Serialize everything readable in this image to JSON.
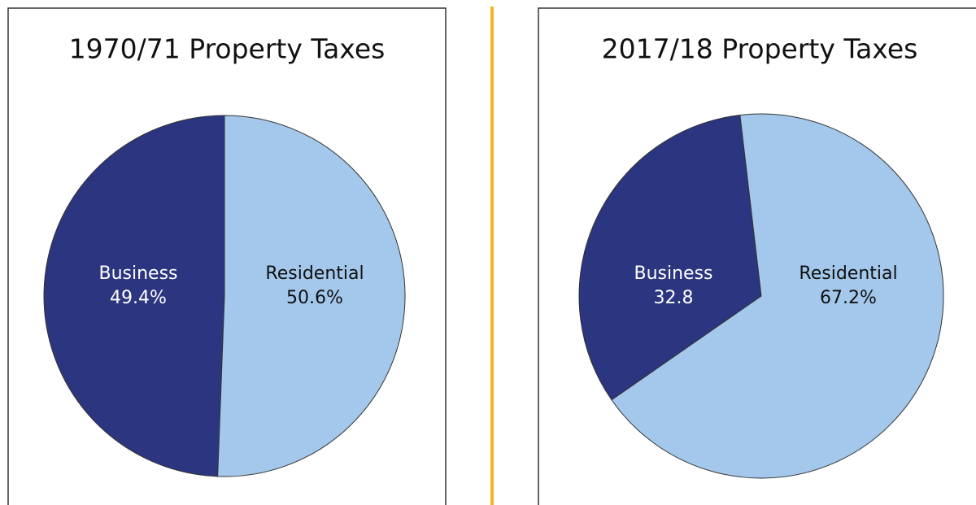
{
  "chart_data": [
    {
      "type": "pie",
      "title": "1970/71 Property Taxes",
      "categories": [
        "Business",
        "Residential"
      ],
      "values": [
        49.4,
        50.6
      ],
      "value_labels": [
        "49.4%",
        "50.6%"
      ],
      "colors": [
        "#2b3580",
        "#a3c8eb"
      ]
    },
    {
      "type": "pie",
      "title": "2017/18 Property Taxes",
      "categories": [
        "Business",
        "Residential"
      ],
      "values": [
        32.8,
        67.2
      ],
      "value_labels": [
        "32.8",
        "67.2%"
      ],
      "colors": [
        "#2b3580",
        "#a3c8eb"
      ]
    }
  ]
}
